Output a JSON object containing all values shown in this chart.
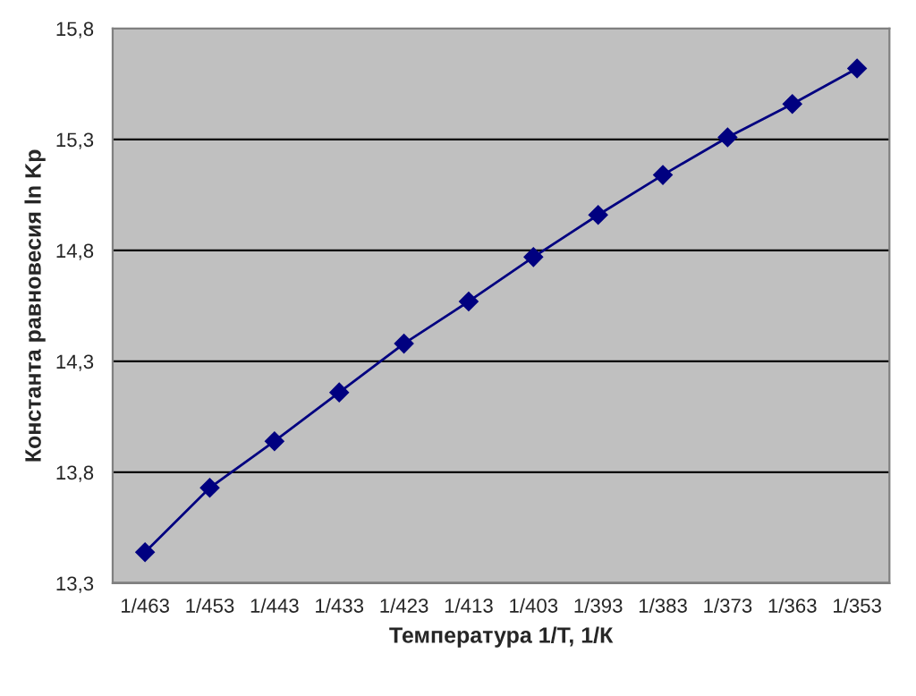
{
  "chart_data": {
    "type": "line",
    "xlabel": "Температура 1/Т, 1/К",
    "ylabel": "Константа равновесия ln Kp",
    "categories": [
      "1/463",
      "1/453",
      "1/443",
      "1/433",
      "1/423",
      "1/413",
      "1/403",
      "1/393",
      "1/383",
      "1/373",
      "1/363",
      "1/353"
    ],
    "series": [
      {
        "color": "#000080",
        "values": [
          13.44,
          13.73,
          13.94,
          14.16,
          14.38,
          14.57,
          14.77,
          14.96,
          15.14,
          15.31,
          15.46,
          15.62
        ]
      }
    ],
    "ylim": [
      13.3,
      15.8
    ],
    "yticks": [
      {
        "value": 13.3,
        "label": "13,3"
      },
      {
        "value": 13.8,
        "label": "13,8"
      },
      {
        "value": 14.3,
        "label": "14,3"
      },
      {
        "value": 14.8,
        "label": "14,8"
      },
      {
        "value": 15.3,
        "label": "15,3"
      },
      {
        "value": 15.8,
        "label": "15,8"
      }
    ],
    "grid": "y",
    "marker": "diamond",
    "line_style": "solid",
    "legend": false
  }
}
